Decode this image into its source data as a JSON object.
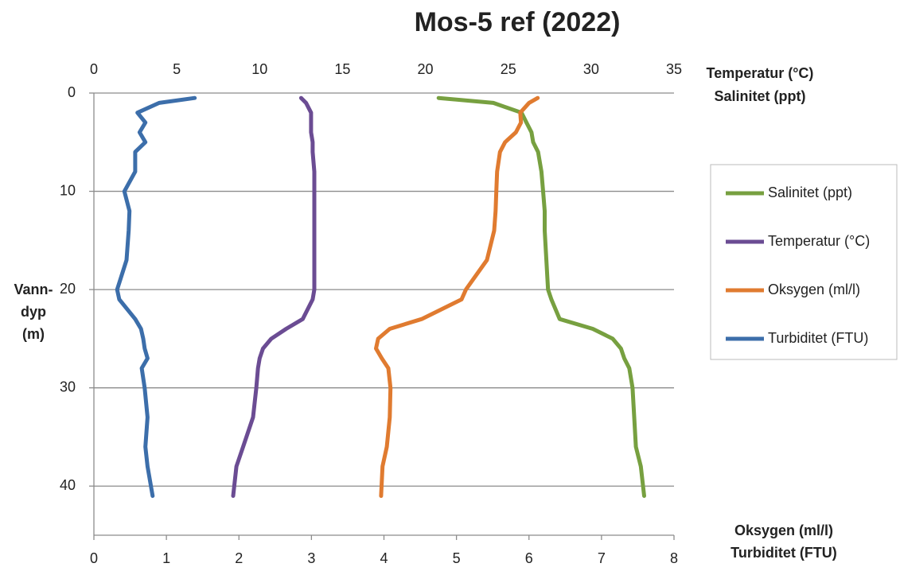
{
  "chart_data": {
    "type": "line",
    "title": "Mos-5 ref (2022)",
    "x_label": [
      "Temperatur (°C)",
      "Salinitet (ppt)"
    ],
    "x2_label": [
      "Oksygen (ml/l)",
      "Turbiditet (FTU)"
    ],
    "y_label": [
      "Vann-",
      "dyp",
      "(m)"
    ],
    "xlim": [
      0,
      35
    ],
    "xticks": [
      0,
      5,
      10,
      15,
      20,
      25,
      30,
      35
    ],
    "x2lim": [
      0,
      8
    ],
    "x2ticks": [
      0,
      1,
      2,
      3,
      4,
      5,
      6,
      7,
      8
    ],
    "ylim": [
      0,
      45
    ],
    "yticks": [
      0,
      10,
      20,
      30,
      40
    ],
    "y_reversed": true,
    "grid": true,
    "legend": "right",
    "y": [
      0.5,
      1,
      2,
      3,
      4,
      5,
      6,
      8,
      10,
      12,
      14,
      17,
      20,
      21,
      23,
      24,
      25,
      26,
      27,
      28,
      30,
      33,
      36,
      38,
      41
    ],
    "series": [
      {
        "name": "Salinitet (ppt)",
        "color": "#77a040",
        "axis": "x",
        "values": [
          20.8,
          24.1,
          25.8,
          26.1,
          26.4,
          26.5,
          26.8,
          27.0,
          27.1,
          27.2,
          27.2,
          27.3,
          27.4,
          27.6,
          28.1,
          30.1,
          31.3,
          31.8,
          32.0,
          32.3,
          32.5,
          32.6,
          32.7,
          33.0,
          33.2
        ]
      },
      {
        "name": "Temperatur (°C)",
        "color": "#6b4c93",
        "axis": "x",
        "values": [
          12.5,
          12.8,
          13.1,
          13.1,
          13.1,
          13.2,
          13.2,
          13.3,
          13.3,
          13.3,
          13.3,
          13.3,
          13.3,
          13.2,
          12.6,
          11.6,
          10.7,
          10.2,
          10.0,
          9.9,
          9.8,
          9.6,
          9.0,
          8.6,
          8.4
        ]
      },
      {
        "name": "Oksygen (ml/l)",
        "color": "#e07b30",
        "axis": "x2",
        "values": [
          6.12,
          6.0,
          5.88,
          5.89,
          5.82,
          5.67,
          5.6,
          5.56,
          5.55,
          5.54,
          5.52,
          5.42,
          5.13,
          5.07,
          4.52,
          4.08,
          3.92,
          3.89,
          3.97,
          4.06,
          4.09,
          4.08,
          4.04,
          3.98,
          3.96
        ]
      },
      {
        "name": "Turbiditet (FTU)",
        "color": "#3c6eaa",
        "axis": "x2",
        "values": [
          1.39,
          0.9,
          0.6,
          0.71,
          0.63,
          0.71,
          0.57,
          0.57,
          0.42,
          0.49,
          0.48,
          0.45,
          0.32,
          0.35,
          0.57,
          0.65,
          0.68,
          0.7,
          0.74,
          0.66,
          0.7,
          0.74,
          0.71,
          0.74,
          0.81
        ]
      }
    ]
  }
}
